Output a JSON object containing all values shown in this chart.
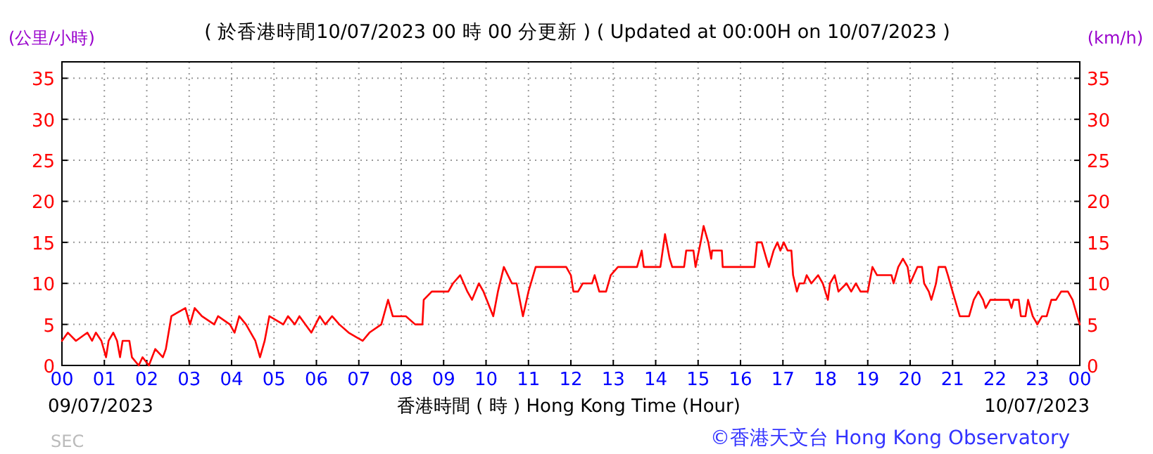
{
  "chart_data": {
    "type": "line",
    "title": "( 於香港時間10/07/2023 00 時 00 分更新 ) ( Updated at 00:00H on 10/07/2023 )",
    "xlabel": "香港時間 ( 時 ) Hong Kong Time (Hour)",
    "ylabel": "(公里/小時)",
    "y2label": "(km/h)",
    "annotations": [
      "09/07/2023",
      "10/07/2023",
      "©香港天文台 Hong Kong Observatory",
      "SEC"
    ],
    "xlim": [
      0,
      24
    ],
    "xticks": [
      {
        "value": 0,
        "label": "00"
      },
      {
        "value": 1,
        "label": "01"
      },
      {
        "value": 2,
        "label": "02"
      },
      {
        "value": 3,
        "label": "03"
      },
      {
        "value": 4,
        "label": "04"
      },
      {
        "value": 5,
        "label": "05"
      },
      {
        "value": 6,
        "label": "06"
      },
      {
        "value": 7,
        "label": "07"
      },
      {
        "value": 8,
        "label": "08"
      },
      {
        "value": 9,
        "label": "09"
      },
      {
        "value": 10,
        "label": "10"
      },
      {
        "value": 11,
        "label": "11"
      },
      {
        "value": 12,
        "label": "12"
      },
      {
        "value": 13,
        "label": "13"
      },
      {
        "value": 14,
        "label": "14"
      },
      {
        "value": 15,
        "label": "15"
      },
      {
        "value": 16,
        "label": "16"
      },
      {
        "value": 17,
        "label": "17"
      },
      {
        "value": 18,
        "label": "18"
      },
      {
        "value": 19,
        "label": "19"
      },
      {
        "value": 20,
        "label": "20"
      },
      {
        "value": 21,
        "label": "21"
      },
      {
        "value": 22,
        "label": "22"
      },
      {
        "value": 23,
        "label": "23"
      },
      {
        "value": 24,
        "label": "00"
      }
    ],
    "ylim": [
      0,
      37
    ],
    "yticks": [
      0,
      5,
      10,
      15,
      20,
      25,
      30,
      35
    ],
    "y2lim": [
      0,
      37
    ],
    "y2ticks": [
      0,
      5,
      10,
      15,
      20,
      25,
      30,
      35
    ],
    "grid": true,
    "marker": "none",
    "line_style": "solid",
    "series": [
      {
        "color": "#ff0000",
        "x": [
          0,
          0.14,
          0.33,
          0.6,
          0.71,
          0.8,
          0.93,
          1.04,
          1.1,
          1.21,
          1.3,
          1.37,
          1.43,
          1.59,
          1.65,
          1.81,
          1.9,
          2.05,
          2.2,
          2.38,
          2.45,
          2.58,
          2.91,
          3.02,
          3.13,
          3.3,
          3.59,
          3.68,
          3.96,
          4.07,
          4.18,
          4.34,
          4.56,
          4.67,
          4.78,
          4.89,
          5.22,
          5.33,
          5.49,
          5.6,
          5.88,
          6.08,
          6.21,
          6.37,
          6.54,
          6.76,
          7.09,
          7.25,
          7.53,
          7.69,
          7.8,
          8.11,
          8.33,
          8.5,
          8.53,
          8.72,
          9.11,
          9.22,
          9.39,
          9.56,
          9.67,
          9.83,
          9.94,
          10.17,
          10.28,
          10.42,
          10.61,
          10.72,
          10.87,
          11,
          11.17,
          11.89,
          12,
          12.06,
          12.17,
          12.28,
          12.5,
          12.56,
          12.67,
          12.83,
          12.94,
          13.11,
          13.56,
          13.67,
          13.72,
          14.11,
          14.22,
          14.33,
          14.39,
          14.67,
          14.72,
          14.89,
          14.94,
          15.06,
          15.13,
          15.24,
          15.31,
          15.33,
          15.56,
          15.58,
          16.33,
          16.39,
          16.5,
          16.61,
          16.67,
          16.78,
          16.87,
          16.94,
          17.02,
          17.11,
          17.2,
          17.24,
          17.33,
          17.39,
          17.5,
          17.56,
          17.67,
          17.83,
          17.94,
          18.06,
          18.11,
          18.22,
          18.31,
          18.5,
          18.61,
          18.72,
          18.83,
          19,
          19.11,
          19.22,
          19.56,
          19.61,
          19.72,
          19.83,
          19.94,
          20,
          20.17,
          20.28,
          20.33,
          20.44,
          20.5,
          20.61,
          20.67,
          20.83,
          20.89,
          21,
          21.17,
          21.39,
          21.5,
          21.61,
          21.72,
          21.78,
          21.89,
          22.33,
          22.39,
          22.44,
          22.56,
          22.61,
          22.72,
          22.78,
          22.89,
          23,
          23.11,
          23.22,
          23.33,
          23.44,
          23.56,
          23.72,
          23.83,
          23.94,
          24
        ],
        "values": [
          3,
          4,
          3,
          4,
          3,
          4,
          3,
          1,
          3,
          4,
          3,
          1,
          3,
          3,
          1,
          0,
          1,
          0,
          2,
          1,
          2,
          6,
          7,
          5,
          7,
          6,
          5,
          6,
          5,
          4,
          6,
          5,
          3,
          1,
          3,
          6,
          5,
          6,
          5,
          6,
          4,
          6,
          5,
          6,
          5,
          4,
          3,
          4,
          5,
          8,
          6,
          6,
          5,
          5,
          8,
          9,
          9,
          10,
          11,
          9,
          8,
          10,
          9,
          6,
          9,
          12,
          10,
          10,
          6,
          9,
          12,
          12,
          11,
          9,
          9,
          10,
          10,
          11,
          9,
          9,
          11,
          12,
          12,
          14,
          12,
          12,
          16,
          13,
          12,
          12,
          14,
          14,
          12,
          15,
          17,
          15,
          13,
          14,
          14,
          12,
          12,
          15,
          15,
          13,
          12,
          14,
          15,
          14,
          15,
          14,
          14,
          11,
          9,
          10,
          10,
          11,
          10,
          11,
          10,
          8,
          10,
          11,
          9,
          10,
          9,
          10,
          9,
          9,
          12,
          11,
          11,
          10,
          12,
          13,
          12,
          10,
          12,
          12,
          10,
          9,
          8,
          10,
          12,
          12,
          11,
          9,
          6,
          6,
          8,
          9,
          8,
          7,
          8,
          8,
          7,
          8,
          8,
          6,
          6,
          8,
          6,
          5,
          6,
          6,
          8,
          8,
          9,
          9,
          8,
          6,
          5
        ]
      }
    ]
  }
}
